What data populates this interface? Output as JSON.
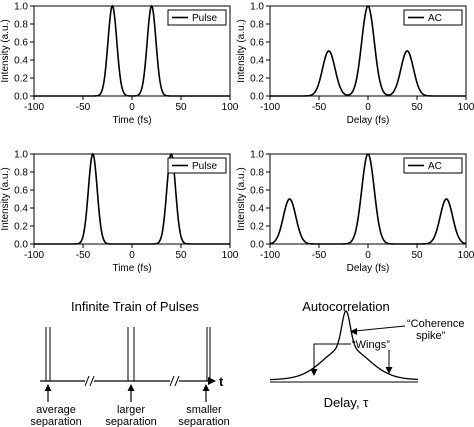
{
  "chart_data": [
    {
      "type": "line",
      "xlabel": "Time (fs)",
      "ylabel": "Intensity (a.u.)",
      "xlim": [
        -100,
        100
      ],
      "ylim": [
        0,
        1.0
      ],
      "xticks": [
        "-100",
        "-50",
        "0",
        "50",
        "100"
      ],
      "yticks": [
        "0.0",
        "0.2",
        "0.4",
        "0.6",
        "0.8",
        "1.0"
      ],
      "legend": "Pulse",
      "legend_position": "top-right",
      "series": [
        {
          "name": "Pulse",
          "peaks": [
            {
              "x": -20,
              "y": 1.0,
              "sigma": 4.5
            },
            {
              "x": 20,
              "y": 1.0,
              "sigma": 4.5
            }
          ]
        }
      ]
    },
    {
      "type": "line",
      "xlabel": "Delay (fs)",
      "ylabel": "Intensity (a.u.)",
      "xlim": [
        -100,
        100
      ],
      "ylim": [
        0,
        1.0
      ],
      "xticks": [
        "-100",
        "-50",
        "0",
        "50",
        "100"
      ],
      "yticks": [
        "0.0",
        "0.2",
        "0.4",
        "0.6",
        "0.8",
        "1.0"
      ],
      "legend": "AC",
      "legend_position": "top-right",
      "series": [
        {
          "name": "AC",
          "peaks": [
            {
              "x": -40,
              "y": 0.5,
              "sigma": 6.4
            },
            {
              "x": 0,
              "y": 1.0,
              "sigma": 6.4
            },
            {
              "x": 40,
              "y": 0.5,
              "sigma": 6.4
            }
          ]
        }
      ]
    },
    {
      "type": "line",
      "xlabel": "Time (fs)",
      "ylabel": "Intensity (a.u.)",
      "xlim": [
        -100,
        100
      ],
      "ylim": [
        0,
        1.0
      ],
      "xticks": [
        "-100",
        "-50",
        "0",
        "50",
        "100"
      ],
      "yticks": [
        "0.0",
        "0.2",
        "0.4",
        "0.6",
        "0.8",
        "1.0"
      ],
      "legend": "Pulse",
      "legend_position": "top-right",
      "series": [
        {
          "name": "Pulse",
          "peaks": [
            {
              "x": -40,
              "y": 1.0,
              "sigma": 4.5
            },
            {
              "x": 40,
              "y": 1.0,
              "sigma": 4.5
            }
          ]
        }
      ]
    },
    {
      "type": "line",
      "xlabel": "Delay (fs)",
      "ylabel": "Intensity (a.u.)",
      "xlim": [
        -100,
        100
      ],
      "ylim": [
        0,
        1.0
      ],
      "xticks": [
        "-100",
        "-50",
        "0",
        "50",
        "100"
      ],
      "yticks": [
        "0.0",
        "0.2",
        "0.4",
        "0.6",
        "0.8",
        "1.0"
      ],
      "legend": "AC",
      "legend_position": "top-right",
      "series": [
        {
          "name": "AC",
          "peaks": [
            {
              "x": -80,
              "y": 0.5,
              "sigma": 6.4
            },
            {
              "x": 0,
              "y": 1.0,
              "sigma": 6.4
            },
            {
              "x": 80,
              "y": 0.5,
              "sigma": 6.4
            }
          ]
        }
      ]
    }
  ],
  "schematic": {
    "train": {
      "title": "Infinite Train of Pulses",
      "axis_symbol": "t",
      "labels": [
        {
          "line1": "average",
          "line2": "separation"
        },
        {
          "line1": "larger",
          "line2": "separation"
        },
        {
          "line1": "smaller",
          "line2": "separation"
        }
      ]
    },
    "autocorr": {
      "title": "Autocorrelation",
      "spike_label_1": "“Coherence",
      "spike_label_2": "spike”",
      "wings_label": "“Wings”",
      "xlabel": "Delay, τ"
    }
  }
}
